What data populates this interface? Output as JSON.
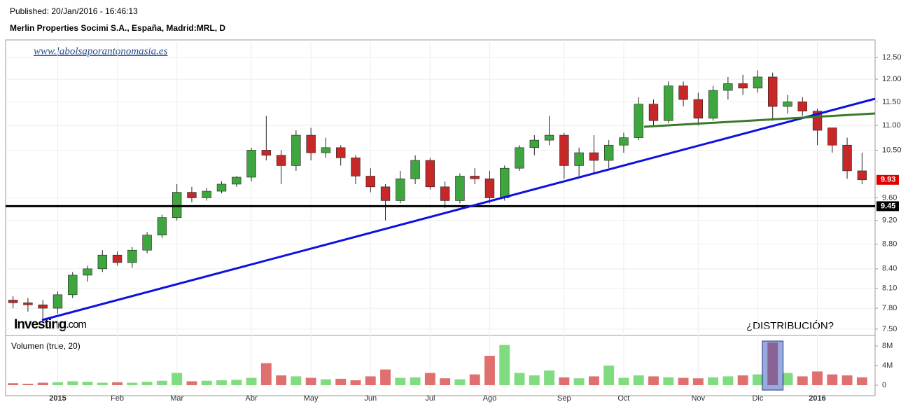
{
  "published": "Published: 20/Jan/2016 - 16:46:13",
  "chart_data": {
    "type": "candlestick",
    "title": "Merlin Properties Socimi S.A., España, Madrid:MRL, D",
    "watermark": "www.labolsaporantonomasia.es",
    "logo": "Investing",
    "logo_suffix": ".com",
    "annotation": "¿DISTRIBUCIÓN?",
    "categories": [
      null,
      null,
      null,
      "2015",
      null,
      null,
      null,
      "Feb",
      null,
      null,
      null,
      "Mar",
      null,
      null,
      null,
      null,
      "Abr",
      null,
      null,
      null,
      "May",
      null,
      null,
      null,
      "Jun",
      null,
      null,
      null,
      "Jul",
      null,
      null,
      null,
      "Ago",
      null,
      null,
      null,
      null,
      "Sep",
      null,
      null,
      null,
      "Oct",
      null,
      null,
      null,
      null,
      "Nov",
      null,
      null,
      null,
      "Dic",
      null,
      null,
      null,
      "2016",
      null,
      null,
      null
    ],
    "open": [
      7.92,
      7.88,
      7.85,
      7.8,
      8.0,
      8.3,
      8.4,
      8.62,
      8.5,
      8.7,
      8.95,
      9.25,
      9.7,
      9.6,
      9.72,
      9.85,
      9.98,
      10.5,
      10.4,
      10.2,
      10.8,
      10.45,
      10.55,
      10.35,
      10.0,
      9.8,
      9.55,
      9.95,
      10.3,
      9.8,
      9.55,
      10.0,
      9.95,
      9.6,
      10.15,
      10.55,
      10.7,
      10.8,
      10.2,
      10.45,
      10.3,
      10.6,
      10.75,
      11.45,
      11.1,
      11.85,
      11.55,
      11.15,
      11.75,
      11.9,
      11.8,
      12.05,
      11.4,
      11.5,
      11.3,
      10.95,
      10.6,
      10.1
    ],
    "high": [
      7.98,
      7.95,
      7.92,
      8.05,
      8.35,
      8.45,
      8.7,
      8.68,
      8.75,
      9.0,
      9.3,
      9.85,
      9.8,
      9.78,
      9.9,
      10.0,
      10.55,
      11.2,
      10.5,
      10.9,
      10.95,
      10.75,
      10.6,
      10.4,
      10.15,
      9.85,
      10.1,
      10.4,
      10.35,
      9.9,
      10.05,
      10.15,
      10.1,
      10.2,
      10.6,
      10.8,
      11.2,
      10.85,
      10.55,
      10.8,
      10.7,
      10.85,
      11.6,
      11.55,
      11.95,
      11.95,
      11.7,
      11.85,
      12.05,
      12.1,
      12.2,
      12.15,
      11.65,
      11.6,
      11.35,
      10.95,
      10.75,
      10.45
    ],
    "low": [
      7.8,
      7.75,
      7.6,
      7.72,
      7.95,
      8.2,
      8.35,
      8.45,
      8.42,
      8.65,
      8.9,
      9.2,
      9.52,
      9.55,
      9.68,
      9.8,
      9.9,
      10.3,
      9.85,
      10.1,
      10.3,
      10.35,
      10.2,
      9.85,
      9.7,
      9.2,
      9.5,
      9.85,
      9.75,
      9.42,
      9.5,
      9.85,
      9.5,
      9.55,
      10.1,
      10.4,
      10.6,
      9.95,
      10.0,
      10.05,
      10.15,
      10.45,
      10.7,
      11.0,
      11.05,
      11.4,
      11.0,
      11.1,
      11.55,
      11.65,
      11.7,
      11.1,
      11.25,
      11.2,
      10.6,
      10.45,
      9.95,
      9.85
    ],
    "close": [
      7.88,
      7.85,
      7.8,
      8.0,
      8.3,
      8.4,
      8.62,
      8.5,
      8.7,
      8.95,
      9.25,
      9.7,
      9.6,
      9.72,
      9.85,
      9.98,
      10.5,
      10.4,
      10.2,
      10.8,
      10.45,
      10.55,
      10.35,
      10.0,
      9.8,
      9.55,
      9.95,
      10.3,
      9.8,
      9.55,
      10.0,
      9.95,
      9.6,
      10.15,
      10.55,
      10.7,
      10.8,
      10.2,
      10.45,
      10.3,
      10.6,
      10.75,
      11.45,
      11.1,
      11.85,
      11.55,
      11.15,
      11.75,
      11.9,
      11.8,
      12.05,
      11.4,
      11.5,
      11.3,
      10.9,
      10.6,
      10.1,
      9.93
    ],
    "up_color": "#3fa53f",
    "down_color": "#c62828",
    "ylim": [
      7.42,
      12.92
    ],
    "log_scale": true,
    "yticks": [
      {
        "value": 12.5,
        "label": "12.50"
      },
      {
        "value": 12,
        "label": "12.00"
      },
      {
        "value": 11.5,
        "label": "11.50"
      },
      {
        "value": 11,
        "label": "11.00"
      },
      {
        "value": 10.5,
        "label": "10.50"
      },
      {
        "value": 9.6,
        "label": "9.60"
      },
      {
        "value": 9.2,
        "label": "9.20"
      },
      {
        "value": 8.8,
        "label": "8.80"
      },
      {
        "value": 8.4,
        "label": "8.40"
      },
      {
        "value": 8.1,
        "label": "8.10"
      },
      {
        "value": 7.8,
        "label": "7.80"
      },
      {
        "value": 7.5,
        "label": "7.50"
      }
    ],
    "price_labels": [
      9.93,
      9.45
    ],
    "price_label_colors": [
      "#e00000",
      "#000000"
    ],
    "volume": {
      "label": "Volumen (true, 20)",
      "up_color": "#7fdc7f",
      "down_color": "#e07070",
      "values": [
        0.4,
        0.3,
        0.5,
        0.6,
        0.8,
        0.7,
        0.5,
        0.6,
        0.5,
        0.7,
        0.9,
        2.5,
        0.8,
        0.9,
        1.0,
        1.1,
        1.5,
        4.5,
        2.0,
        1.8,
        1.5,
        1.2,
        1.3,
        1.0,
        1.8,
        3.2,
        1.5,
        1.6,
        2.5,
        1.4,
        1.2,
        2.2,
        6.0,
        8.2,
        2.5,
        2.0,
        3.0,
        1.6,
        1.4,
        1.8,
        4.0,
        1.5,
        2.0,
        1.8,
        1.6,
        1.5,
        1.4,
        1.6,
        1.8,
        2.0,
        2.2,
        8.7,
        2.5,
        1.8,
        2.8,
        2.2,
        2.0,
        1.6
      ],
      "ylim": [
        0,
        10
      ],
      "yticks": [
        0,
        {
          "value": 4,
          "label": "4M"
        },
        {
          "value": 8,
          "label": "8M"
        }
      ]
    }
  }
}
